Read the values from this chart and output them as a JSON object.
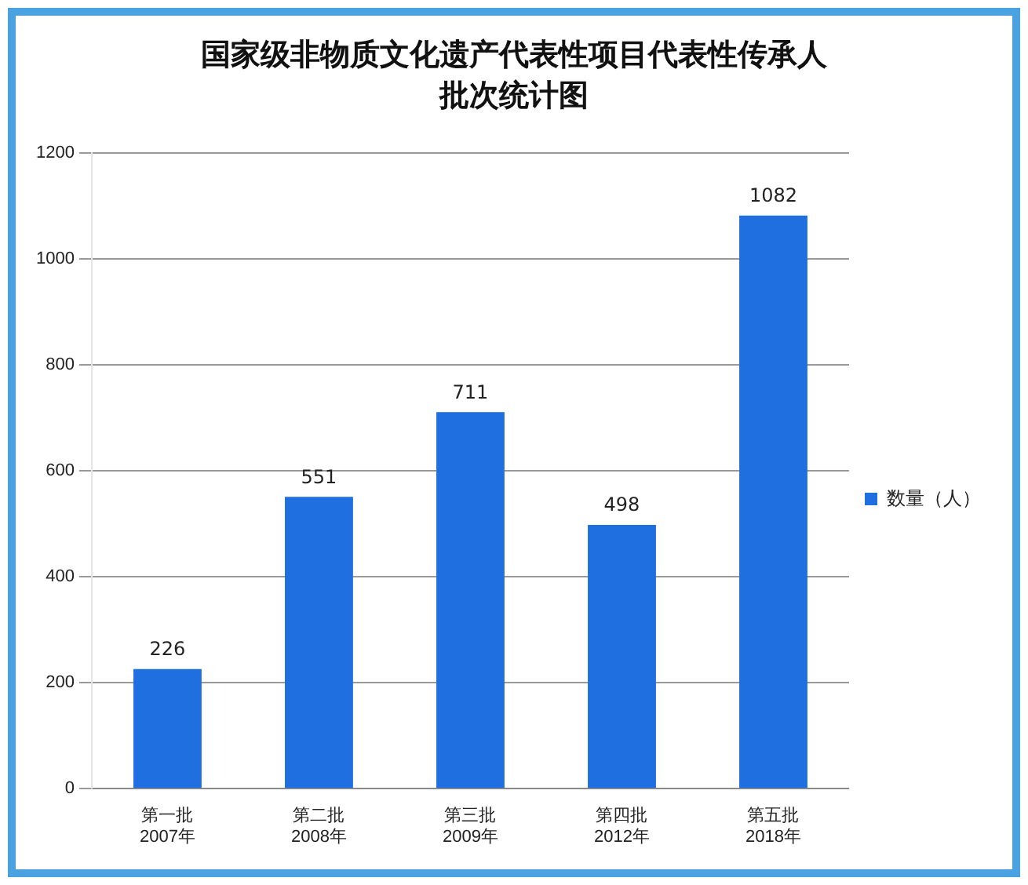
{
  "chart_data": {
    "type": "bar",
    "title": "国家级非物质文化遗产代表性项目代表性传承人批次统计图",
    "categories": [
      "第一批\n2007年",
      "第二批\n2008年",
      "第三批\n2009年",
      "第四批\n2012年",
      "第五批\n2018年"
    ],
    "series": [
      {
        "name": "数量（人）",
        "color": "#1f6fe0",
        "values": [
          226,
          551,
          711,
          498,
          1082
        ]
      }
    ],
    "ylim": [
      0,
      1200
    ],
    "yticks": [
      0,
      200,
      400,
      600,
      800,
      1000,
      1200
    ],
    "grid": "y",
    "legend": "right",
    "data_labels": true
  }
}
